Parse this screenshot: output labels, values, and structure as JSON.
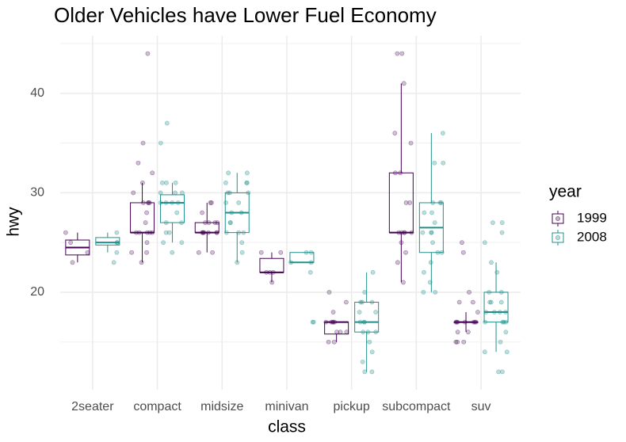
{
  "chart_data": {
    "type": "boxplot",
    "title": "Older Vehicles have Lower Fuel Economy",
    "x_label": "class",
    "y_label": "hwy",
    "legend_title": "year",
    "categories": [
      "2seater",
      "compact",
      "midsize",
      "minivan",
      "pickup",
      "subcompact",
      "suv"
    ],
    "ylim": [
      10.2,
      45.8
    ],
    "yticks": [
      20,
      30,
      40
    ],
    "minor_yticks": [
      15,
      25,
      35,
      45
    ],
    "grid": true,
    "series": [
      {
        "name": "1999",
        "color": "#440154",
        "min": [
          23,
          23,
          24,
          21,
          15,
          21,
          16
        ],
        "q1": [
          23.75,
          26,
          26,
          22,
          15.8,
          26,
          17
        ],
        "median": [
          24.5,
          26,
          26,
          22,
          17,
          26,
          17
        ],
        "q3": [
          25.25,
          29,
          27,
          23.4,
          17,
          32,
          17
        ],
        "max": [
          26,
          31,
          29,
          24,
          17,
          41,
          18
        ],
        "points": [
          [
            26,
            24,
            23,
            25
          ],
          [
            44,
            35,
            33,
            29,
            29,
            29,
            28,
            27,
            26,
            26,
            26,
            26,
            25,
            24,
            24,
            23,
            26,
            29,
            30,
            31,
            32
          ],
          [
            29,
            29,
            27,
            26,
            26,
            26,
            26,
            27,
            26,
            24,
            26,
            27,
            28,
            27,
            26,
            24
          ],
          [
            24,
            24,
            22,
            22,
            21,
            22
          ],
          [
            20,
            19,
            17,
            17,
            17,
            16,
            16,
            16,
            15,
            15,
            17,
            18,
            17
          ],
          [
            44,
            44,
            41,
            36,
            35,
            32,
            29,
            26,
            26,
            26,
            25,
            24,
            26,
            26,
            29,
            32,
            21,
            23
          ],
          [
            25,
            24,
            19,
            17,
            17,
            17,
            15,
            15,
            16,
            17,
            18,
            19,
            20,
            17,
            17,
            16,
            15,
            17
          ]
        ]
      },
      {
        "name": "2008",
        "color": "#21908c",
        "min": [
          24,
          25,
          23,
          23,
          12,
          20,
          14
        ],
        "q1": [
          24.75,
          27,
          26,
          23,
          16,
          24,
          17
        ],
        "median": [
          25,
          29,
          28,
          23,
          17,
          26.5,
          18
        ],
        "q3": [
          25.5,
          29.8,
          30,
          24,
          19,
          29,
          20
        ],
        "max": [
          26,
          31,
          32,
          24,
          22,
          36,
          23
        ],
        "points": [
          [
            26,
            25,
            24,
            25,
            23
          ],
          [
            37,
            35,
            31,
            31,
            30,
            30,
            29,
            29,
            29,
            28,
            27,
            27,
            26,
            26,
            25,
            25,
            24,
            29,
            30,
            31
          ],
          [
            32,
            31,
            31,
            30,
            30,
            29,
            28,
            28,
            27,
            27,
            26,
            26,
            26,
            25,
            24,
            23,
            29,
            30,
            31,
            32
          ],
          [
            24,
            24,
            23,
            23,
            22,
            17,
            17
          ],
          [
            22,
            20,
            19,
            19,
            18,
            17,
            17,
            17,
            16,
            16,
            16,
            15,
            14,
            13,
            12,
            12,
            18,
            19
          ],
          [
            36,
            33,
            33,
            29,
            29,
            28,
            27,
            26,
            26,
            25,
            24,
            24,
            23,
            22,
            21,
            20,
            20,
            28,
            29,
            26
          ],
          [
            27,
            27,
            26,
            25,
            23,
            22,
            20,
            20,
            19,
            19,
            18,
            18,
            18,
            17,
            17,
            17,
            16,
            15,
            14,
            14,
            12,
            12,
            19,
            18,
            17
          ]
        ]
      }
    ]
  }
}
